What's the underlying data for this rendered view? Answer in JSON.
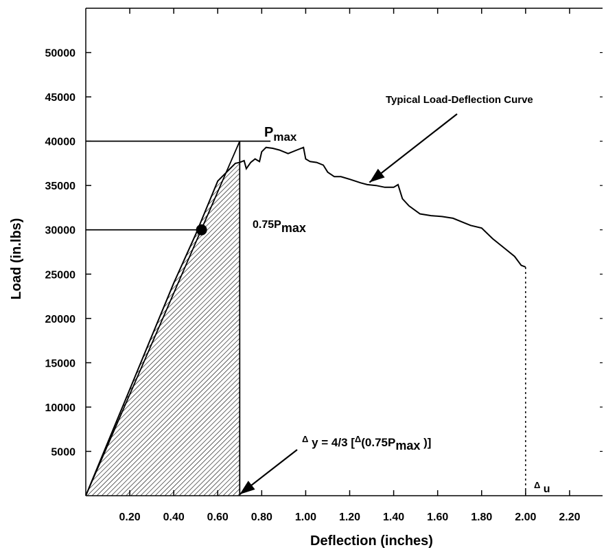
{
  "chart_data": {
    "type": "line",
    "xlabel": "Deflection (inches)",
    "ylabel": "Load (in.lbs)",
    "xlim": [
      0,
      2.35
    ],
    "ylim": [
      0,
      55000
    ],
    "x_ticks": [
      0.2,
      0.4,
      0.6,
      0.8,
      1.0,
      1.2,
      1.4,
      1.6,
      1.8,
      2.0,
      2.2
    ],
    "x_tick_labels": [
      "0.20",
      "0.40",
      "0.60",
      "0.80",
      "1.00",
      "1.20",
      "1.40",
      "1.60",
      "1.80",
      "2.00",
      "2.20"
    ],
    "y_ticks": [
      5000,
      10000,
      15000,
      20000,
      25000,
      30000,
      35000,
      40000,
      45000,
      50000
    ],
    "y_tick_labels": [
      "5000",
      "10000",
      "15000",
      "20000",
      "25000",
      "30000",
      "35000",
      "40000",
      "45000",
      "50000"
    ],
    "grid": false,
    "series": [
      {
        "name": "Typical Load-Deflection Curve",
        "x": [
          0,
          0.1,
          0.2,
          0.3,
          0.4,
          0.5,
          0.55,
          0.6,
          0.64,
          0.68,
          0.7,
          0.72,
          0.73,
          0.75,
          0.77,
          0.79,
          0.8,
          0.82,
          0.85,
          0.88,
          0.92,
          0.96,
          0.99,
          1.0,
          1.02,
          1.05,
          1.08,
          1.1,
          1.13,
          1.16,
          1.2,
          1.25,
          1.28,
          1.32,
          1.36,
          1.4,
          1.42,
          1.44,
          1.47,
          1.52,
          1.57,
          1.62,
          1.67,
          1.72,
          1.75,
          1.8,
          1.85,
          1.9,
          1.95,
          1.98,
          2.0
        ],
        "y": [
          0,
          6000,
          12000,
          18000,
          24000,
          29500,
          32500,
          35500,
          36500,
          37500,
          37600,
          37800,
          36900,
          37600,
          38000,
          37700,
          38800,
          39300,
          39200,
          39000,
          38600,
          39000,
          39300,
          38000,
          37700,
          37600,
          37300,
          36500,
          36000,
          36000,
          35700,
          35300,
          35100,
          35000,
          34800,
          34800,
          35100,
          33500,
          32700,
          31800,
          31600,
          31500,
          31300,
          30800,
          30500,
          30200,
          29000,
          28000,
          27000,
          26000,
          25800
        ]
      }
    ],
    "annotations": {
      "curve_label": "Typical Load-Deflection Curve",
      "pmax_label": "P",
      "pmax_sub": "max",
      "p075_label": "0.75P",
      "p075_sub": "max",
      "dy_prefix": "Δ",
      "dy_text": " y = 4/3 [",
      "dy_delta": "Δ",
      "dy_text2": "(0.75P",
      "dy_sub": "max",
      "dy_close": " )]",
      "du_delta": "Δ",
      "du_sub": " u",
      "pmax_value": 40000,
      "p075_value": 30000,
      "p075_deflection": 0.52,
      "dy_deflection": 0.7,
      "du_deflection": 2.0,
      "du_load": 25800
    }
  }
}
